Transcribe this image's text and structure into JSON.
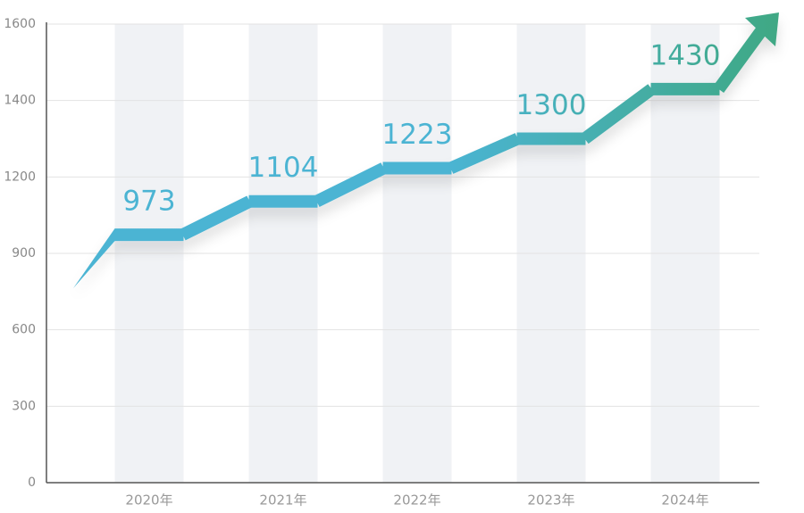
{
  "chart_data": {
    "type": "line",
    "categories": [
      "2020年",
      "2021年",
      "2022年",
      "2023年",
      "2024年"
    ],
    "values": [
      973,
      1104,
      1223,
      1300,
      1430
    ],
    "colors": [
      "#4bb4d3",
      "#3fa882"
    ],
    "ylim": [
      0,
      1600
    ],
    "yticks": [
      0,
      300,
      600,
      900,
      1200,
      1400,
      1600
    ],
    "grid": true
  }
}
